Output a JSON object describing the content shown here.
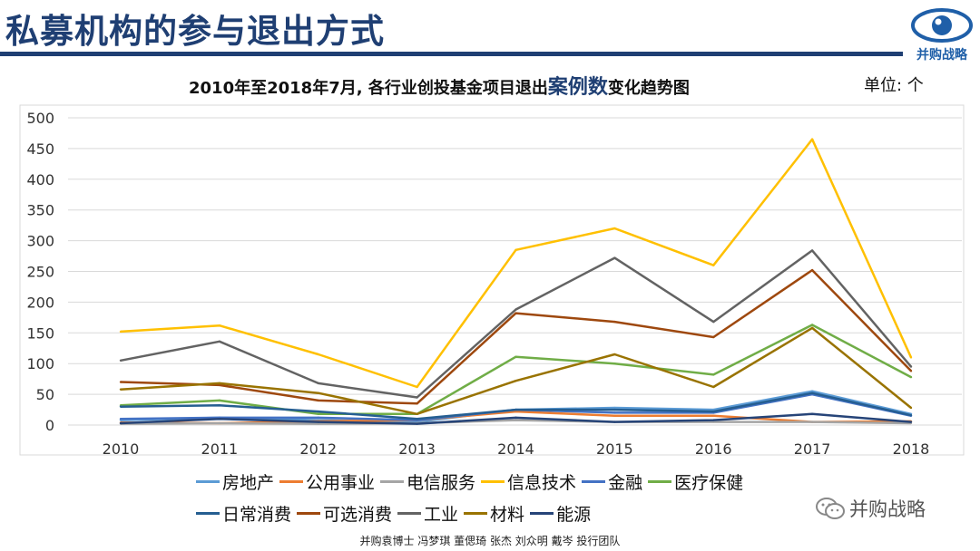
{
  "header": {
    "title": "私募机构的参与退出方式",
    "logo_text": "并购战略",
    "accent_color": "#1f3f73"
  },
  "chart_title": {
    "prefix": "2010年至2018年7月, 各行业创投基金项目退出",
    "highlight": "案例数",
    "suffix": "变化趋势图"
  },
  "unit": "单位: 个",
  "wechat": {
    "label": "并购战略",
    "icon": "wechat-icon"
  },
  "footer": "并购袁博士 冯梦琪 董偲琦 张杰 刘众明 戴岑 投行团队",
  "chart_data": {
    "type": "line",
    "title": "2010年至2018年7月, 各行业创投基金项目退出案例数变化趋势图",
    "xlabel": "",
    "ylabel": "",
    "ylim": [
      0,
      500
    ],
    "yticks": [
      0,
      50,
      100,
      150,
      200,
      250,
      300,
      350,
      400,
      450,
      500
    ],
    "grid": true,
    "legend_position": "bottom",
    "categories": [
      "2010",
      "2011",
      "2012",
      "2013",
      "2014",
      "2015",
      "2016",
      "2017",
      "2018"
    ],
    "series": [
      {
        "name": "房地产",
        "color": "#5b9bd5",
        "values": [
          8,
          12,
          8,
          5,
          25,
          28,
          25,
          55,
          18
        ]
      },
      {
        "name": "公用事业",
        "color": "#ed7d31",
        "values": [
          4,
          3,
          6,
          8,
          22,
          15,
          15,
          5,
          6
        ]
      },
      {
        "name": "电信服务",
        "color": "#a5a5a5",
        "values": [
          2,
          3,
          2,
          3,
          8,
          5,
          5,
          5,
          3
        ]
      },
      {
        "name": "信息技术",
        "color": "#ffc000",
        "values": [
          152,
          162,
          115,
          62,
          285,
          320,
          260,
          465,
          110
        ]
      },
      {
        "name": "金融",
        "color": "#4472c4",
        "values": [
          10,
          12,
          12,
          8,
          25,
          20,
          20,
          50,
          15
        ]
      },
      {
        "name": "医疗保健",
        "color": "#70ad47",
        "values": [
          32,
          40,
          18,
          18,
          111,
          100,
          82,
          163,
          78
        ]
      },
      {
        "name": "日常消费",
        "color": "#255e91",
        "values": [
          30,
          32,
          22,
          10,
          25,
          25,
          22,
          52,
          16
        ]
      },
      {
        "name": "可选消费",
        "color": "#9e480e",
        "values": [
          70,
          65,
          40,
          35,
          182,
          168,
          143,
          252,
          88
        ]
      },
      {
        "name": "工业",
        "color": "#636363",
        "values": [
          105,
          136,
          68,
          45,
          188,
          272,
          168,
          284,
          95
        ]
      },
      {
        "name": "材料",
        "color": "#997300",
        "values": [
          58,
          68,
          52,
          18,
          72,
          115,
          62,
          158,
          28
        ]
      },
      {
        "name": "能源",
        "color": "#264478",
        "values": [
          3,
          10,
          5,
          2,
          12,
          5,
          8,
          18,
          5
        ]
      }
    ]
  }
}
